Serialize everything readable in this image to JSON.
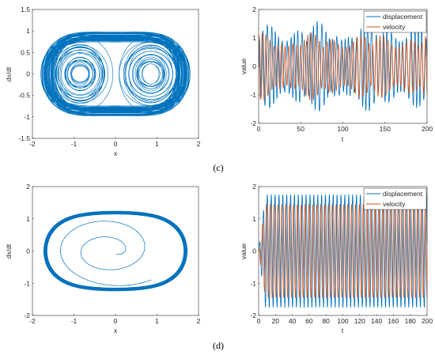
{
  "figure": {
    "caption_c": "(c)",
    "caption_d": "(d)"
  },
  "chart_data": [
    {
      "id": "c-phase",
      "type": "line",
      "xlabel": "x",
      "ylabel": "dx/dt",
      "xlim": [
        -2,
        2
      ],
      "ylim": [
        -1.5,
        1.5
      ],
      "xticks": [
        "-2",
        "-1",
        "0",
        "1",
        "2"
      ],
      "yticks": [
        "-1.5",
        "-1",
        "-0.5",
        "0",
        "0.5",
        "1",
        "1.5"
      ],
      "series_color": "#0072BD",
      "description_params": {
        "regime": "chaotic",
        "x_extent": [
          -1.8,
          1.8
        ],
        "v_extent": [
          -1.25,
          1.25
        ]
      }
    },
    {
      "id": "c-time",
      "type": "line",
      "xlabel": "t",
      "ylabel": "value",
      "xlim": [
        0,
        200
      ],
      "ylim": [
        -2,
        2
      ],
      "xticks": [
        "0",
        "50",
        "100",
        "150",
        "200"
      ],
      "yticks": [
        "-2",
        "-1",
        "0",
        "1",
        "2"
      ],
      "legend": "top-right",
      "series": [
        {
          "name": "displacement",
          "color": "#0072BD",
          "amplitude": 1.6
        },
        {
          "name": "velocity",
          "color": "#D95319",
          "amplitude": 1.2
        }
      ]
    },
    {
      "id": "d-phase",
      "type": "line",
      "xlabel": "x",
      "ylabel": "dx/dt",
      "xlim": [
        -2,
        2
      ],
      "ylim": [
        -2,
        2
      ],
      "xticks": [
        "-2",
        "-1",
        "0",
        "1",
        "2"
      ],
      "yticks": [
        "-2",
        "-1",
        "0",
        "1",
        "2"
      ],
      "series_color": "#0072BD",
      "description_params": {
        "regime": "periodic",
        "x_extent": [
          -1.7,
          1.75
        ],
        "v_extent": [
          -1.5,
          1.5
        ]
      }
    },
    {
      "id": "d-time",
      "type": "line",
      "xlabel": "t",
      "ylabel": "value",
      "xlim": [
        0,
        200
      ],
      "ylim": [
        -2,
        2
      ],
      "xticks": [
        "0",
        "20",
        "40",
        "60",
        "80",
        "100",
        "120",
        "140",
        "160",
        "180",
        "200"
      ],
      "yticks": [
        "-2",
        "-1",
        "0",
        "1",
        "2"
      ],
      "legend": "top-right",
      "series": [
        {
          "name": "displacement",
          "color": "#0072BD",
          "amplitude": 1.75
        },
        {
          "name": "velocity",
          "color": "#D95319",
          "amplitude": 1.45
        }
      ]
    }
  ]
}
